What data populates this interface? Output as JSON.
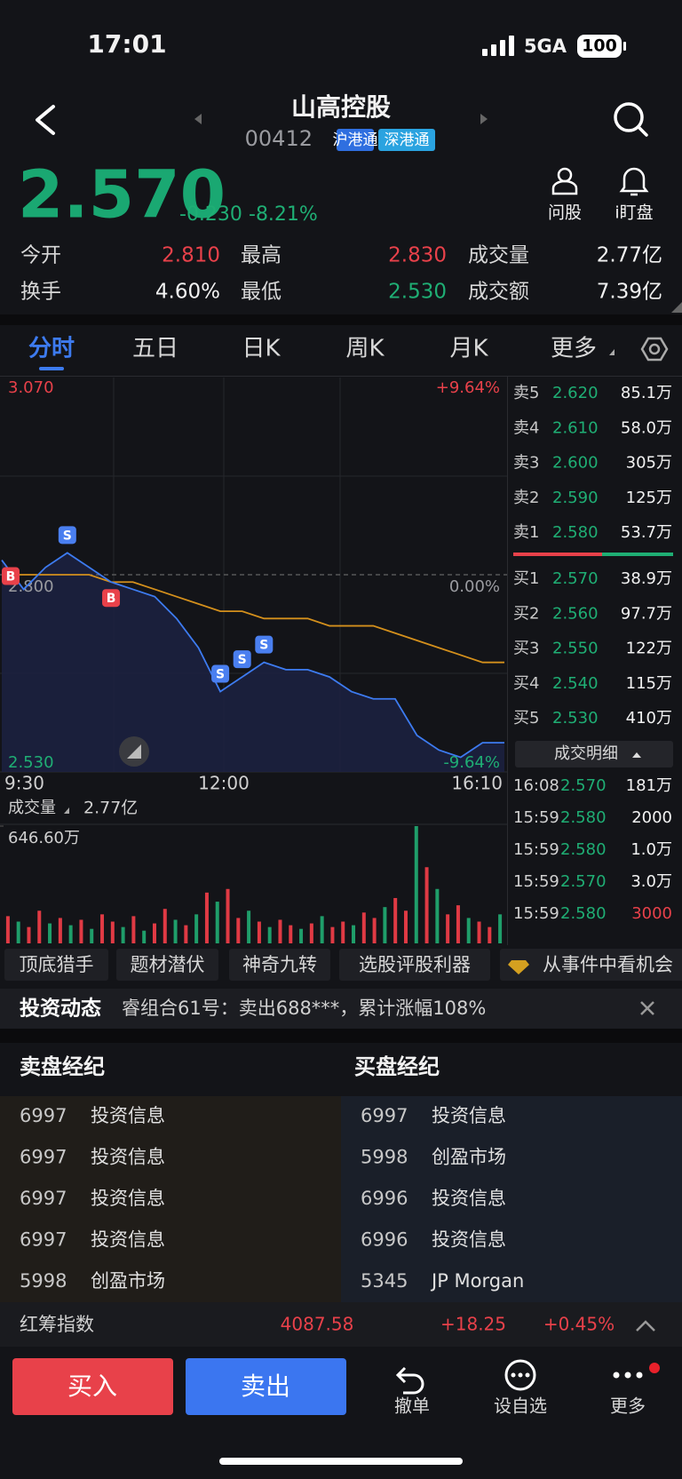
{
  "status_bar": {
    "time": "17:01",
    "network": "5GA",
    "battery": "100"
  },
  "header": {
    "name": "山高控股",
    "code": "00412",
    "tags": [
      "沪港通",
      "深港通"
    ]
  },
  "quote": {
    "price": "2.570",
    "change": "-0.230",
    "change_pct": "-8.21%"
  },
  "actions": [
    "问股",
    "i盯盘"
  ],
  "stats": [
    {
      "label": "今开",
      "value": "2.810",
      "tone": "up"
    },
    {
      "label": "最高",
      "value": "2.830",
      "tone": "up"
    },
    {
      "label": "成交量",
      "value": "2.77亿",
      "tone": "neutral"
    },
    {
      "label": "换手",
      "value": "4.60%",
      "tone": "neutral"
    },
    {
      "label": "最低",
      "value": "2.530",
      "tone": "down"
    },
    {
      "label": "成交额",
      "value": "7.39亿",
      "tone": "neutral"
    }
  ],
  "tabs": [
    "分时",
    "五日",
    "日K",
    "周K",
    "月K",
    "更多"
  ],
  "intraday": {
    "type": "line",
    "ylim": [
      2.53,
      3.07
    ],
    "yticks": [
      {
        "value": 3.07,
        "label": "3.070"
      },
      {
        "value": 2.8,
        "label": "2.800"
      },
      {
        "value": 2.53,
        "label": "2.530"
      }
    ],
    "pct_labels": [
      "+9.64%",
      "0.00%",
      "-9.64%"
    ],
    "xlabels": [
      "9:30",
      "12:00",
      "16:10"
    ],
    "price": [
      2.82,
      2.78,
      2.81,
      2.83,
      2.81,
      2.79,
      2.78,
      2.77,
      2.74,
      2.7,
      2.64,
      2.66,
      2.68,
      2.67,
      2.67,
      2.66,
      2.64,
      2.63,
      2.63,
      2.58,
      2.56,
      2.55,
      2.57,
      2.57
    ],
    "average": [
      2.8,
      2.8,
      2.8,
      2.8,
      2.8,
      2.79,
      2.79,
      2.78,
      2.77,
      2.76,
      2.75,
      2.75,
      2.74,
      2.74,
      2.74,
      2.73,
      2.73,
      2.73,
      2.72,
      2.71,
      2.7,
      2.69,
      2.68,
      2.68
    ],
    "price_color": "#3d7bf0",
    "average_color": "#d4901c",
    "markers": [
      {
        "label": "B",
        "index": 0
      },
      {
        "label": "S",
        "index": 3
      },
      {
        "label": "B",
        "index": 5
      },
      {
        "label": "S",
        "index": 10
      },
      {
        "label": "S",
        "index": 11
      },
      {
        "label": "S",
        "index": 12
      }
    ]
  },
  "volume": {
    "type": "bar",
    "label": "成交量",
    "total": "2.77亿",
    "ylim": [
      0,
      646.6
    ],
    "yticks": [
      {
        "value": 646.6,
        "label": "646.60万"
      }
    ],
    "values": [
      150,
      120,
      90,
      180,
      110,
      140,
      100,
      130,
      80,
      160,
      120,
      90,
      150,
      70,
      110,
      190,
      130,
      100,
      160,
      280,
      230,
      300,
      140,
      180,
      120,
      90,
      130,
      100,
      80,
      110,
      150,
      90,
      120,
      100,
      170,
      140,
      200,
      250,
      180,
      646.6,
      420,
      300,
      160,
      210,
      140,
      120,
      90,
      160
    ],
    "up": [
      true,
      false,
      true,
      true,
      false,
      true,
      false,
      true,
      false,
      true,
      true,
      false,
      true,
      false,
      true,
      true,
      false,
      true,
      false,
      true,
      false,
      true,
      true,
      false,
      true,
      false,
      true,
      true,
      false,
      true,
      false,
      true,
      true,
      false,
      true,
      true,
      false,
      true,
      true,
      false,
      true,
      false,
      true,
      true,
      false,
      true,
      true,
      false
    ]
  },
  "order_book": {
    "asks": [
      {
        "label": "卖5",
        "price": "2.620",
        "volume": "85.1万"
      },
      {
        "label": "卖4",
        "price": "2.610",
        "volume": "58.0万"
      },
      {
        "label": "卖3",
        "price": "2.600",
        "volume": "305万"
      },
      {
        "label": "卖2",
        "price": "2.590",
        "volume": "125万"
      },
      {
        "label": "卖1",
        "price": "2.580",
        "volume": "53.7万"
      }
    ],
    "bids": [
      {
        "label": "买1",
        "price": "2.570",
        "volume": "38.9万"
      },
      {
        "label": "买2",
        "price": "2.560",
        "volume": "97.7万"
      },
      {
        "label": "买3",
        "price": "2.550",
        "volume": "122万"
      },
      {
        "label": "买4",
        "price": "2.540",
        "volume": "115万"
      },
      {
        "label": "买5",
        "price": "2.530",
        "volume": "410万"
      }
    ]
  },
  "trades": {
    "title": "成交明细",
    "rows": [
      {
        "time": "16:08",
        "price": "2.570",
        "volume": "181万",
        "side": "neutral"
      },
      {
        "time": "15:59",
        "price": "2.580",
        "volume": "2000",
        "side": "neutral"
      },
      {
        "time": "15:59",
        "price": "2.580",
        "volume": "1.0万",
        "side": "neutral"
      },
      {
        "time": "15:59",
        "price": "2.570",
        "volume": "3.0万",
        "side": "neutral"
      },
      {
        "time": "15:59",
        "price": "2.580",
        "volume": "3000",
        "side": "buy"
      }
    ]
  },
  "tools": [
    "顶底猎手",
    "题材潜伏",
    "神奇九转",
    "选股评股利器",
    "从事件中看机会"
  ],
  "news": {
    "label": "投资动态",
    "text": "睿组合61号：卖出688***，累计涨幅108%"
  },
  "brokers": {
    "sell_title": "卖盘经纪",
    "buy_title": "买盘经纪",
    "sell": [
      [
        "6997",
        "投资信息"
      ],
      [
        "6997",
        "投资信息"
      ],
      [
        "6997",
        "投资信息"
      ],
      [
        "6997",
        "投资信息"
      ],
      [
        "5998",
        "创盈市场"
      ]
    ],
    "buy": [
      [
        "6997",
        "投资信息"
      ],
      [
        "5998",
        "创盈市场"
      ],
      [
        "6996",
        "投资信息"
      ],
      [
        "6996",
        "投资信息"
      ],
      [
        "5345",
        "JP Morgan"
      ]
    ]
  },
  "index_bar": {
    "name": "红筹指数",
    "value": "4087.58",
    "change": "+18.25",
    "change_pct": "+0.45%"
  },
  "bottom": {
    "buy": "买入",
    "sell": "卖出",
    "actions": [
      "撤单",
      "设自选",
      "更多"
    ]
  }
}
